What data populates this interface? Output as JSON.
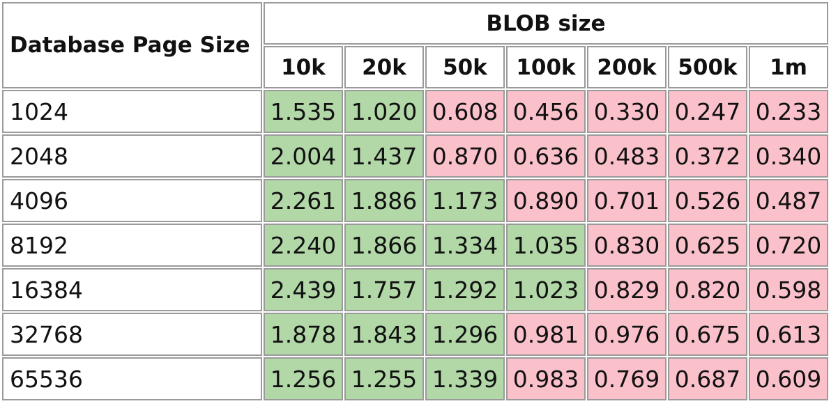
{
  "chart_data": {
    "type": "table",
    "row_header_title": "Database Page Size",
    "column_group_title": "BLOB size",
    "columns": [
      "10k",
      "20k",
      "50k",
      "100k",
      "200k",
      "500k",
      "1m"
    ],
    "rows": [
      {
        "page_size": "1024",
        "values": [
          "1.535",
          "1.020",
          "0.608",
          "0.456",
          "0.330",
          "0.247",
          "0.233"
        ]
      },
      {
        "page_size": "2048",
        "values": [
          "2.004",
          "1.437",
          "0.870",
          "0.636",
          "0.483",
          "0.372",
          "0.340"
        ]
      },
      {
        "page_size": "4096",
        "values": [
          "2.261",
          "1.886",
          "1.173",
          "0.890",
          "0.701",
          "0.526",
          "0.487"
        ]
      },
      {
        "page_size": "8192",
        "values": [
          "2.240",
          "1.866",
          "1.334",
          "1.035",
          "0.830",
          "0.625",
          "0.720"
        ]
      },
      {
        "page_size": "16384",
        "values": [
          "2.439",
          "1.757",
          "1.292",
          "1.023",
          "0.829",
          "0.820",
          "0.598"
        ]
      },
      {
        "page_size": "32768",
        "values": [
          "1.878",
          "1.843",
          "1.296",
          "0.981",
          "0.976",
          "0.675",
          "0.613"
        ]
      },
      {
        "page_size": "65536",
        "values": [
          "1.256",
          "1.255",
          "1.339",
          "0.983",
          "0.769",
          "0.687",
          "0.609"
        ]
      }
    ],
    "threshold": 1.0,
    "colors": {
      "above_threshold": "#b2d8a8",
      "below_threshold": "#fbc1cb"
    }
  }
}
